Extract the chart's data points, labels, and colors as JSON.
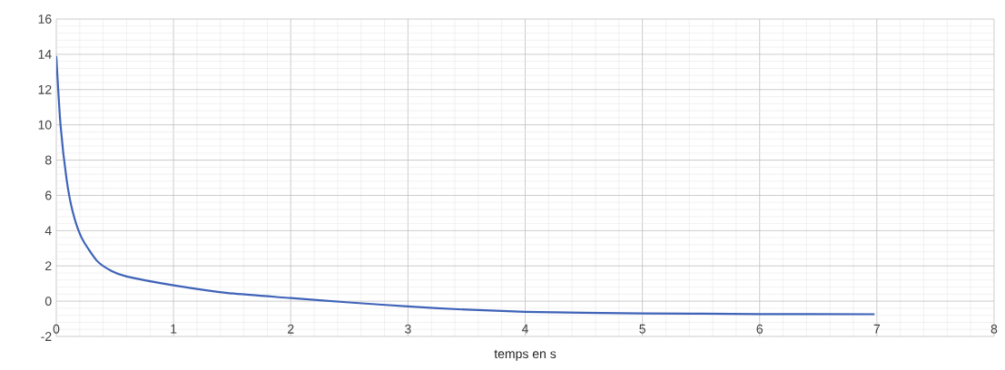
{
  "chart_data": {
    "type": "line",
    "xlabel": "temps en  s",
    "x": [
      0,
      0.036,
      0.088,
      0.139,
      0.216,
      0.345,
      0.474,
      0.6,
      1,
      1.48,
      2,
      2.5,
      3,
      3.5,
      4,
      4.5,
      5,
      6,
      6.98
    ],
    "series": [
      {
        "color": "#3f63b8",
        "values": [
          13.9,
          10,
          6.9,
          5.1,
          3.6,
          2.3,
          1.7,
          1.4,
          0.9,
          0.45,
          0.18,
          -0.07,
          -0.3,
          -0.48,
          -0.6,
          -0.66,
          -0.69,
          -0.73,
          -0.74
        ]
      }
    ],
    "xlim": [
      0,
      8
    ],
    "xticks": [
      0,
      1,
      2,
      3,
      4,
      5,
      6,
      7,
      8
    ],
    "ylim": [
      -2,
      16
    ],
    "yticks": [
      -2,
      0,
      2,
      4,
      6,
      8,
      10,
      12,
      14,
      16
    ],
    "grid": true,
    "marker": "none",
    "line_style": "solid"
  }
}
